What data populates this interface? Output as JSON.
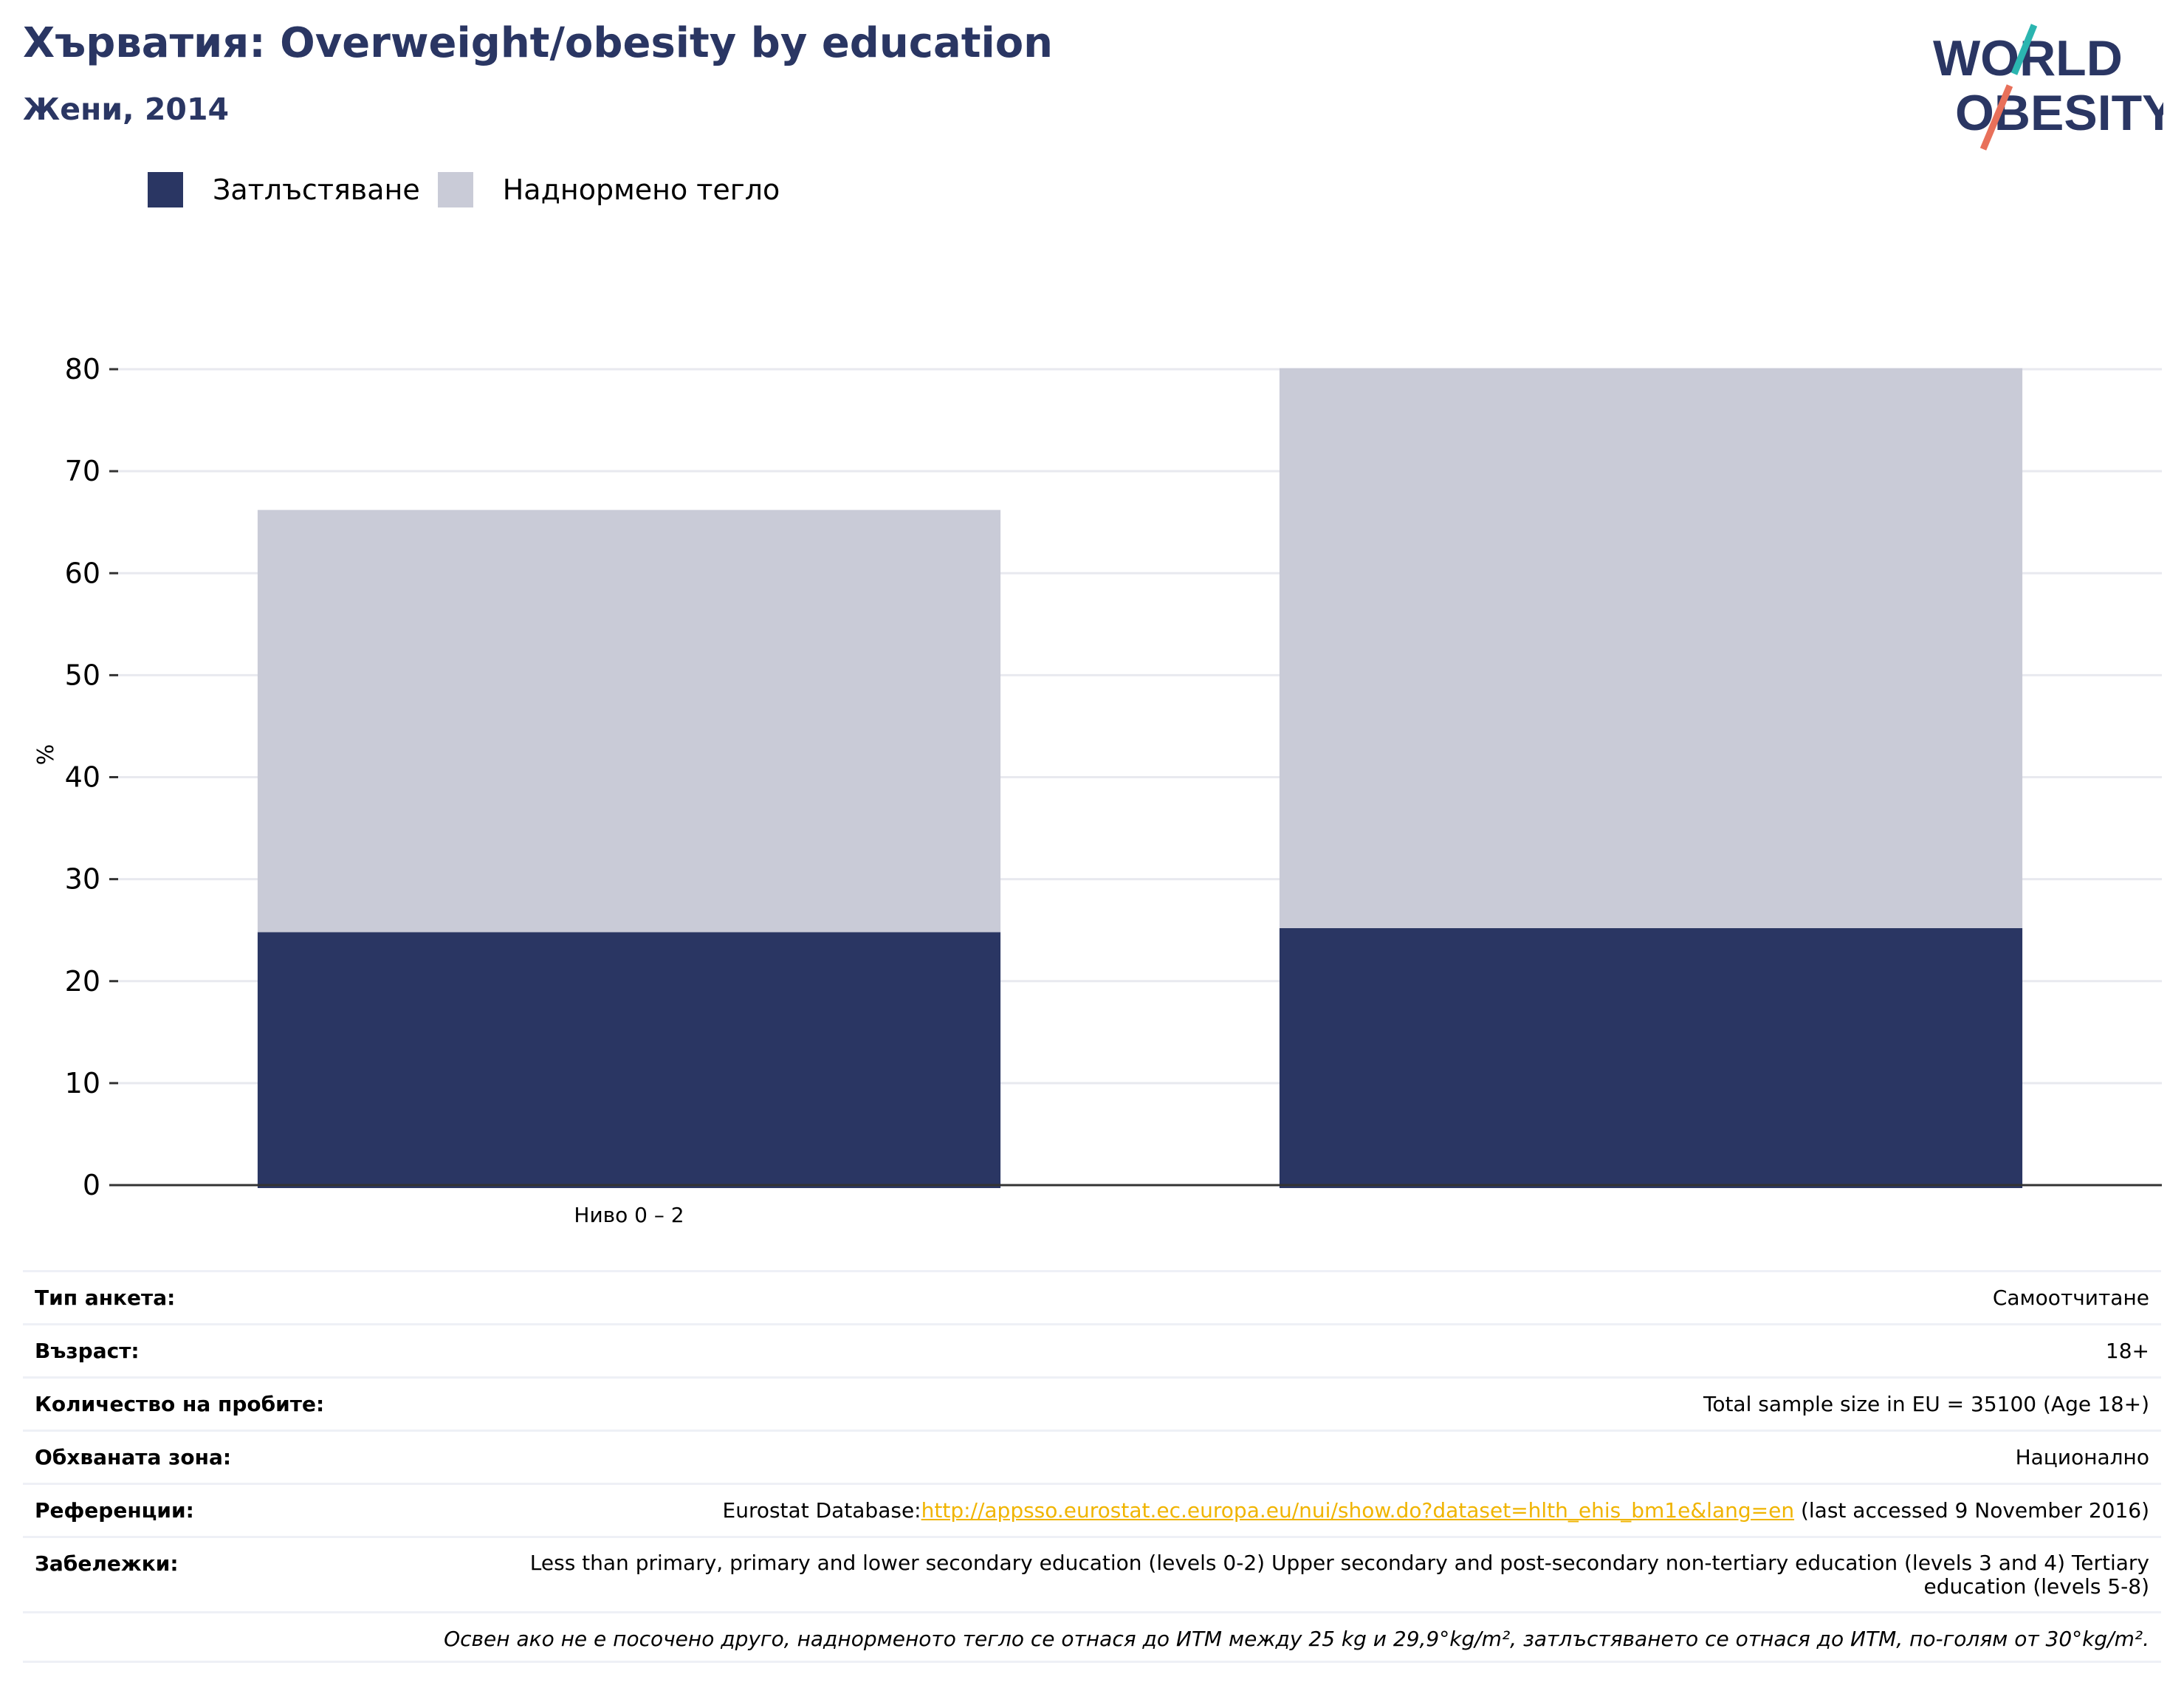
{
  "header": {
    "title": "Хърватия: Overweight/obesity by education",
    "subtitle": "Жени, 2014"
  },
  "logo": {
    "line1": "WORLD",
    "line2": "OBESITY",
    "colors": {
      "navy": "#2a3663",
      "teal": "#2bb5b0",
      "coral": "#e8705a"
    }
  },
  "legend": [
    {
      "label": "Затлъстяване",
      "color": "#2a3663"
    },
    {
      "label": "Наднормено тегло",
      "color": "#c9cbd7"
    }
  ],
  "chart_data": {
    "type": "bar",
    "stacked": true,
    "categories": [
      "Ниво 0 – 2",
      ""
    ],
    "series": [
      {
        "name": "Затлъстяване",
        "values": [
          24.8,
          25.2
        ],
        "color": "#2a3663"
      },
      {
        "name": "Наднормено тегло",
        "values": [
          41.4,
          54.9
        ],
        "color": "#c9cbd7"
      }
    ],
    "ylabel": "%",
    "ylim": [
      0,
      80
    ],
    "yticks": [
      0,
      10,
      20,
      30,
      40,
      50,
      60,
      70,
      80
    ],
    "grid": true
  },
  "info": {
    "survey_type": {
      "label": "Тип анкета:",
      "value": "Самоотчитане"
    },
    "age": {
      "label": "Възраст:",
      "value": "18+"
    },
    "sample_size": {
      "label": "Количество на пробите:",
      "value": "Total sample size in EU = 35100 (Age 18+)"
    },
    "coverage": {
      "label": "Обхваната зона:",
      "value": "Национално"
    },
    "references": {
      "label": "Референции:",
      "prefix": "Eurostat Database:",
      "link": "http://appsso.eurostat.ec.europa.eu/nui/show.do?dataset=hlth_ehis_bm1e&lang=en",
      "suffix": " (last accessed 9 November 2016)"
    },
    "notes": {
      "label": "Забележки:",
      "value": "Less than primary, primary and lower secondary education (levels 0-2) Upper secondary and post-secondary non-tertiary education (levels 3 and 4) Tertiary education (levels 5-8)"
    },
    "footnote": "Освен ако не е посочено друго, наднорменото тегло се отнася до ИТМ между 25 kg и 29,9°kg/m², затлъстяването се отнася до ИТМ, по-голям от 30°kg/m²."
  }
}
